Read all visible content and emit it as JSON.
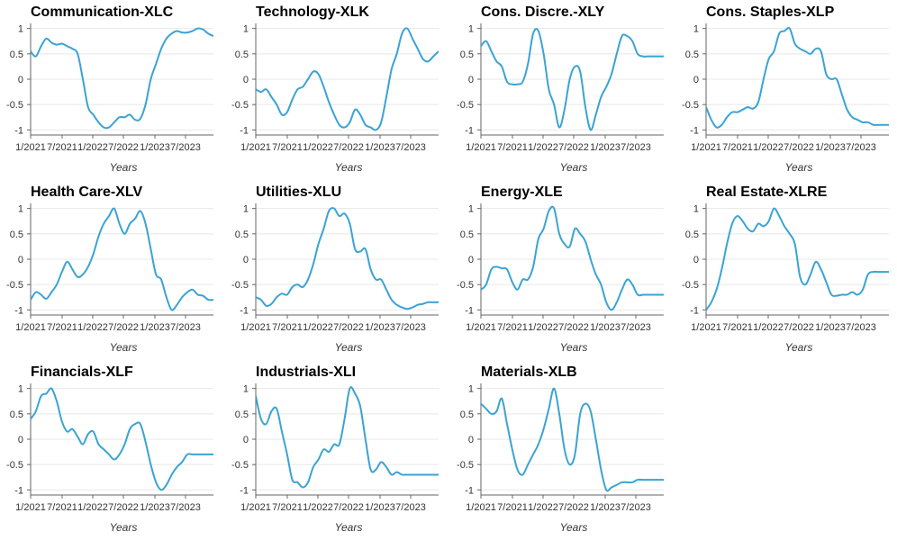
{
  "line_color": "#3aa3d4",
  "chart_data": [
    {
      "type": "line",
      "title": "Communication-XLC",
      "xlabel": "Years",
      "x_ticks": [
        "1/2021",
        "7/2021",
        "1/2022",
        "7/2022",
        "1/2023",
        "7/2023"
      ],
      "y_ticks": [
        "1",
        "0.5",
        "0",
        "-0.5",
        "-1"
      ],
      "ylim": [
        -1.1,
        1.1
      ],
      "xlim": [
        0,
        35
      ],
      "x": [
        0,
        1,
        2,
        3,
        4,
        5,
        6,
        7,
        8,
        9,
        10,
        11,
        12,
        13,
        14,
        15,
        16,
        17,
        18,
        19,
        20,
        21,
        22,
        23,
        24,
        25,
        26,
        27,
        28,
        29,
        30,
        31,
        32,
        33,
        34,
        35
      ],
      "y": [
        0.55,
        0.45,
        0.65,
        0.8,
        0.72,
        0.68,
        0.7,
        0.65,
        0.6,
        0.5,
        0.0,
        -0.55,
        -0.7,
        -0.85,
        -0.95,
        -0.95,
        -0.85,
        -0.75,
        -0.75,
        -0.7,
        -0.8,
        -0.78,
        -0.5,
        0.0,
        0.3,
        0.6,
        0.8,
        0.9,
        0.95,
        0.92,
        0.92,
        0.95,
        1.0,
        0.98,
        0.9,
        0.85
      ]
    },
    {
      "type": "line",
      "title": "Technology-XLK",
      "xlabel": "Years",
      "x_ticks": [
        "1/2021",
        "7/2021",
        "1/2022",
        "7/2022",
        "1/2023",
        "7/2023"
      ],
      "y_ticks": [
        "1",
        "0.5",
        "0",
        "-0.5",
        "-1"
      ],
      "ylim": [
        -1.1,
        1.1
      ],
      "xlim": [
        0,
        35
      ],
      "x": [
        0,
        1,
        2,
        3,
        4,
        5,
        6,
        7,
        8,
        9,
        10,
        11,
        12,
        13,
        14,
        15,
        16,
        17,
        18,
        19,
        20,
        21,
        22,
        23,
        24,
        25,
        26,
        27,
        28,
        29,
        30,
        31,
        32,
        33,
        34,
        35
      ],
      "y": [
        -0.2,
        -0.25,
        -0.2,
        -0.35,
        -0.5,
        -0.7,
        -0.65,
        -0.4,
        -0.2,
        -0.15,
        0.0,
        0.15,
        0.1,
        -0.15,
        -0.45,
        -0.7,
        -0.9,
        -0.95,
        -0.85,
        -0.6,
        -0.7,
        -0.9,
        -0.95,
        -1.0,
        -0.85,
        -0.35,
        0.2,
        0.5,
        0.9,
        1.0,
        0.8,
        0.6,
        0.4,
        0.35,
        0.45,
        0.55
      ]
    },
    {
      "type": "line",
      "title": "Cons. Discre.-XLY",
      "xlabel": "Years",
      "x_ticks": [
        "1/2021",
        "7/2021",
        "1/2022",
        "7/2022",
        "1/2023",
        "7/2023"
      ],
      "y_ticks": [
        "1",
        "0.5",
        "0",
        "-0.5",
        "-1"
      ],
      "ylim": [
        -1.1,
        1.1
      ],
      "xlim": [
        0,
        35
      ],
      "x": [
        0,
        1,
        2,
        3,
        4,
        5,
        6,
        7,
        8,
        9,
        10,
        11,
        12,
        13,
        14,
        15,
        16,
        17,
        18,
        19,
        20,
        21,
        22,
        23,
        24,
        25,
        26,
        27,
        28,
        29,
        30,
        31,
        32,
        33,
        34,
        35
      ],
      "y": [
        0.65,
        0.75,
        0.55,
        0.35,
        0.25,
        -0.05,
        -0.1,
        -0.1,
        -0.05,
        0.3,
        0.9,
        0.95,
        0.5,
        -0.2,
        -0.5,
        -0.95,
        -0.6,
        0.0,
        0.25,
        0.15,
        -0.55,
        -1.0,
        -0.7,
        -0.35,
        -0.15,
        0.1,
        0.5,
        0.85,
        0.85,
        0.75,
        0.5,
        0.45,
        0.45,
        0.45,
        0.45,
        0.45
      ]
    },
    {
      "type": "line",
      "title": "Cons. Staples-XLP",
      "xlabel": "Years",
      "x_ticks": [
        "1/2021",
        "7/2021",
        "1/2022",
        "7/2022",
        "1/2023",
        "7/2023"
      ],
      "y_ticks": [
        "1",
        "0.5",
        "0",
        "-0.5",
        "-1"
      ],
      "ylim": [
        -1.1,
        1.1
      ],
      "xlim": [
        0,
        35
      ],
      "x": [
        0,
        1,
        2,
        3,
        4,
        5,
        6,
        7,
        8,
        9,
        10,
        11,
        12,
        13,
        14,
        15,
        16,
        17,
        18,
        19,
        20,
        21,
        22,
        23,
        24,
        25,
        26,
        27,
        28,
        29,
        30,
        31,
        32,
        33,
        34,
        35
      ],
      "y": [
        -0.55,
        -0.8,
        -0.95,
        -0.9,
        -0.75,
        -0.65,
        -0.65,
        -0.6,
        -0.55,
        -0.58,
        -0.45,
        0.0,
        0.4,
        0.55,
        0.9,
        0.95,
        1.0,
        0.7,
        0.6,
        0.55,
        0.5,
        0.6,
        0.55,
        0.1,
        0.0,
        0.0,
        -0.3,
        -0.6,
        -0.75,
        -0.8,
        -0.85,
        -0.85,
        -0.9,
        -0.9,
        -0.9,
        -0.9
      ]
    },
    {
      "type": "line",
      "title": "Health Care-XLV",
      "xlabel": "Years",
      "x_ticks": [
        "1/2021",
        "7/2021",
        "1/2022",
        "7/2022",
        "1/2023",
        "7/2023"
      ],
      "y_ticks": [
        "1",
        "0.5",
        "0",
        "-0.5",
        "-1"
      ],
      "ylim": [
        -1.1,
        1.1
      ],
      "xlim": [
        0,
        35
      ],
      "x": [
        0,
        1,
        2,
        3,
        4,
        5,
        6,
        7,
        8,
        9,
        10,
        11,
        12,
        13,
        14,
        15,
        16,
        17,
        18,
        19,
        20,
        21,
        22,
        23,
        24,
        25,
        26,
        27,
        28,
        29,
        30,
        31,
        32,
        33,
        34,
        35
      ],
      "y": [
        -0.8,
        -0.65,
        -0.7,
        -0.78,
        -0.65,
        -0.5,
        -0.25,
        -0.05,
        -0.2,
        -0.35,
        -0.3,
        -0.15,
        0.1,
        0.45,
        0.7,
        0.85,
        1.0,
        0.7,
        0.5,
        0.7,
        0.8,
        0.95,
        0.7,
        0.2,
        -0.3,
        -0.4,
        -0.75,
        -1.0,
        -0.9,
        -0.75,
        -0.65,
        -0.6,
        -0.7,
        -0.72,
        -0.8,
        -0.8
      ]
    },
    {
      "type": "line",
      "title": "Utilities-XLU",
      "xlabel": "Years",
      "x_ticks": [
        "1/2021",
        "7/2021",
        "1/2022",
        "7/2022",
        "1/2023",
        "7/2023"
      ],
      "y_ticks": [
        "1",
        "0.5",
        "0",
        "-0.5",
        "-1"
      ],
      "ylim": [
        -1.1,
        1.1
      ],
      "xlim": [
        0,
        35
      ],
      "x": [
        0,
        1,
        2,
        3,
        4,
        5,
        6,
        7,
        8,
        9,
        10,
        11,
        12,
        13,
        14,
        15,
        16,
        17,
        18,
        19,
        20,
        21,
        22,
        23,
        24,
        25,
        26,
        27,
        28,
        29,
        30,
        31,
        32,
        33,
        34,
        35
      ],
      "y": [
        -0.75,
        -0.8,
        -0.92,
        -0.88,
        -0.75,
        -0.68,
        -0.7,
        -0.55,
        -0.5,
        -0.55,
        -0.4,
        -0.1,
        0.3,
        0.6,
        0.95,
        1.0,
        0.85,
        0.9,
        0.7,
        0.2,
        0.15,
        0.2,
        -0.2,
        -0.4,
        -0.4,
        -0.6,
        -0.8,
        -0.9,
        -0.95,
        -0.98,
        -0.95,
        -0.9,
        -0.88,
        -0.85,
        -0.85,
        -0.85
      ]
    },
    {
      "type": "line",
      "title": "Energy-XLE",
      "xlabel": "Years",
      "x_ticks": [
        "1/2021",
        "7/2021",
        "1/2022",
        "7/2022",
        "1/2023",
        "7/2023"
      ],
      "y_ticks": [
        "1",
        "0.5",
        "0",
        "-0.5",
        "-1"
      ],
      "ylim": [
        -1.1,
        1.1
      ],
      "xlim": [
        0,
        35
      ],
      "x": [
        0,
        1,
        2,
        3,
        4,
        5,
        6,
        7,
        8,
        9,
        10,
        11,
        12,
        13,
        14,
        15,
        16,
        17,
        18,
        19,
        20,
        21,
        22,
        23,
        24,
        25,
        26,
        27,
        28,
        29,
        30,
        31,
        32,
        33,
        34,
        35
      ],
      "y": [
        -0.6,
        -0.5,
        -0.2,
        -0.15,
        -0.18,
        -0.2,
        -0.45,
        -0.6,
        -0.4,
        -0.4,
        -0.15,
        0.4,
        0.6,
        0.95,
        1.0,
        0.5,
        0.3,
        0.25,
        0.6,
        0.5,
        0.35,
        0.0,
        -0.3,
        -0.5,
        -0.85,
        -1.0,
        -0.85,
        -0.6,
        -0.4,
        -0.5,
        -0.7,
        -0.7,
        -0.7,
        -0.7,
        -0.7,
        -0.7
      ]
    },
    {
      "type": "line",
      "title": "Real Estate-XLRE",
      "xlabel": "Years",
      "x_ticks": [
        "1/2021",
        "7/2021",
        "1/2022",
        "7/2022",
        "1/2023",
        "7/2023"
      ],
      "y_ticks": [
        "1",
        "0.5",
        "0",
        "-0.5",
        "-1"
      ],
      "ylim": [
        -1.1,
        1.1
      ],
      "xlim": [
        0,
        35
      ],
      "x": [
        0,
        1,
        2,
        3,
        4,
        5,
        6,
        7,
        8,
        9,
        10,
        11,
        12,
        13,
        14,
        15,
        16,
        17,
        18,
        19,
        20,
        21,
        22,
        23,
        24,
        25,
        26,
        27,
        28,
        29,
        30,
        31,
        32,
        33,
        34,
        35
      ],
      "y": [
        -1.0,
        -0.85,
        -0.6,
        -0.2,
        0.3,
        0.7,
        0.85,
        0.75,
        0.6,
        0.55,
        0.7,
        0.65,
        0.75,
        1.0,
        0.85,
        0.65,
        0.5,
        0.3,
        -0.35,
        -0.5,
        -0.3,
        -0.05,
        -0.2,
        -0.45,
        -0.7,
        -0.72,
        -0.7,
        -0.7,
        -0.65,
        -0.7,
        -0.6,
        -0.3,
        -0.25,
        -0.25,
        -0.25,
        -0.25
      ]
    },
    {
      "type": "line",
      "title": "Financials-XLF",
      "xlabel": "Years",
      "x_ticks": [
        "1/2021",
        "7/2021",
        "1/2022",
        "7/2022",
        "1/2023",
        "7/2023"
      ],
      "y_ticks": [
        "1",
        "0.5",
        "0",
        "-0.5",
        "-1"
      ],
      "ylim": [
        -1.1,
        1.1
      ],
      "xlim": [
        0,
        35
      ],
      "x": [
        0,
        1,
        2,
        3,
        4,
        5,
        6,
        7,
        8,
        9,
        10,
        11,
        12,
        13,
        14,
        15,
        16,
        17,
        18,
        19,
        20,
        21,
        22,
        23,
        24,
        25,
        26,
        27,
        28,
        29,
        30,
        31,
        32,
        33,
        34,
        35
      ],
      "y": [
        0.4,
        0.55,
        0.85,
        0.9,
        1.0,
        0.75,
        0.35,
        0.15,
        0.2,
        0.05,
        -0.1,
        0.1,
        0.15,
        -0.1,
        -0.2,
        -0.3,
        -0.4,
        -0.3,
        -0.1,
        0.2,
        0.3,
        0.3,
        -0.05,
        -0.5,
        -0.85,
        -1.0,
        -0.9,
        -0.7,
        -0.55,
        -0.45,
        -0.3,
        -0.3,
        -0.3,
        -0.3,
        -0.3,
        -0.3
      ]
    },
    {
      "type": "line",
      "title": "Industrials-XLI",
      "xlabel": "Years",
      "x_ticks": [
        "1/2021",
        "7/2021",
        "1/2022",
        "7/2022",
        "1/2023",
        "7/2023"
      ],
      "y_ticks": [
        "1",
        "0.5",
        "0",
        "-0.5",
        "-1"
      ],
      "ylim": [
        -1.1,
        1.1
      ],
      "xlim": [
        0,
        35
      ],
      "x": [
        0,
        1,
        2,
        3,
        4,
        5,
        6,
        7,
        8,
        9,
        10,
        11,
        12,
        13,
        14,
        15,
        16,
        17,
        18,
        19,
        20,
        21,
        22,
        23,
        24,
        25,
        26,
        27,
        28,
        29,
        30,
        31,
        32,
        33,
        34,
        35
      ],
      "y": [
        0.85,
        0.4,
        0.3,
        0.55,
        0.6,
        0.15,
        -0.3,
        -0.8,
        -0.85,
        -0.95,
        -0.85,
        -0.55,
        -0.4,
        -0.2,
        -0.25,
        -0.1,
        -0.1,
        0.4,
        1.0,
        0.9,
        0.65,
        0.0,
        -0.6,
        -0.6,
        -0.45,
        -0.55,
        -0.7,
        -0.65,
        -0.7,
        -0.7,
        -0.7,
        -0.7,
        -0.7,
        -0.7,
        -0.7,
        -0.7
      ]
    },
    {
      "type": "line",
      "title": "Materials-XLB",
      "xlabel": "Years",
      "x_ticks": [
        "1/2021",
        "7/2021",
        "1/2022",
        "7/2022",
        "1/2023",
        "7/2023"
      ],
      "y_ticks": [
        "1",
        "0.5",
        "0",
        "-0.5",
        "-1"
      ],
      "ylim": [
        -1.1,
        1.1
      ],
      "xlim": [
        0,
        35
      ],
      "x": [
        0,
        1,
        2,
        3,
        4,
        5,
        6,
        7,
        8,
        9,
        10,
        11,
        12,
        13,
        14,
        15,
        16,
        17,
        18,
        19,
        20,
        21,
        22,
        23,
        24,
        25,
        26,
        27,
        28,
        29,
        30,
        31,
        32,
        33,
        34,
        35
      ],
      "y": [
        0.7,
        0.6,
        0.5,
        0.55,
        0.8,
        0.3,
        -0.2,
        -0.6,
        -0.7,
        -0.5,
        -0.3,
        -0.1,
        0.2,
        0.6,
        1.0,
        0.5,
        -0.2,
        -0.5,
        -0.3,
        0.5,
        0.7,
        0.55,
        0.0,
        -0.6,
        -1.0,
        -0.95,
        -0.9,
        -0.85,
        -0.85,
        -0.85,
        -0.8,
        -0.8,
        -0.8,
        -0.8,
        -0.8,
        -0.8
      ]
    }
  ]
}
